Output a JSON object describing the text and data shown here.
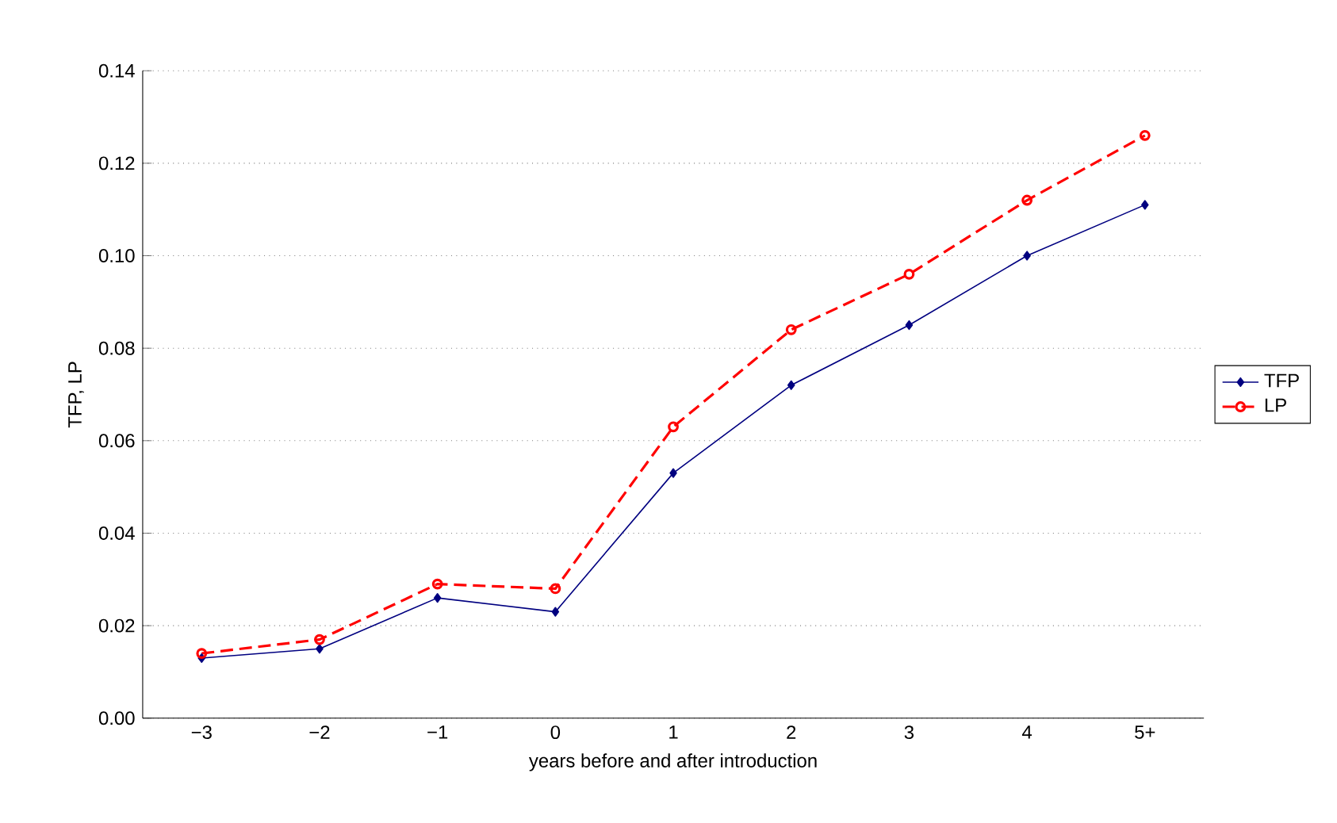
{
  "chart_data": {
    "type": "line",
    "xlabel": "years before and after introduction",
    "ylabel": "TFP, LP",
    "categories": [
      "−3",
      "−2",
      "−1",
      "0",
      "1",
      "2",
      "3",
      "4",
      "5+"
    ],
    "series": [
      {
        "name": "TFP",
        "color": "#000080",
        "marker": "diamond",
        "line_style": "solid",
        "values": [
          0.013,
          0.015,
          0.026,
          0.023,
          0.053,
          0.072,
          0.085,
          0.1,
          0.111
        ]
      },
      {
        "name": "LP",
        "color": "#ff0000",
        "marker": "circle",
        "line_style": "dashed",
        "values": [
          0.014,
          0.017,
          0.029,
          0.028,
          0.063,
          0.084,
          0.096,
          0.112,
          0.126
        ]
      }
    ],
    "ylim": [
      0,
      0.14
    ],
    "yticks": [
      {
        "value": 0,
        "label": "0.00"
      },
      {
        "value": 0.02,
        "label": "0.02"
      },
      {
        "value": 0.04,
        "label": "0.04"
      },
      {
        "value": 0.06,
        "label": "0.06"
      },
      {
        "value": 0.08,
        "label": "0.08"
      },
      {
        "value": 0.1,
        "label": "0.10"
      },
      {
        "value": 0.12,
        "label": "0.12"
      },
      {
        "value": 0.14,
        "label": "0.14"
      }
    ],
    "grid": "y",
    "legend": "right"
  }
}
